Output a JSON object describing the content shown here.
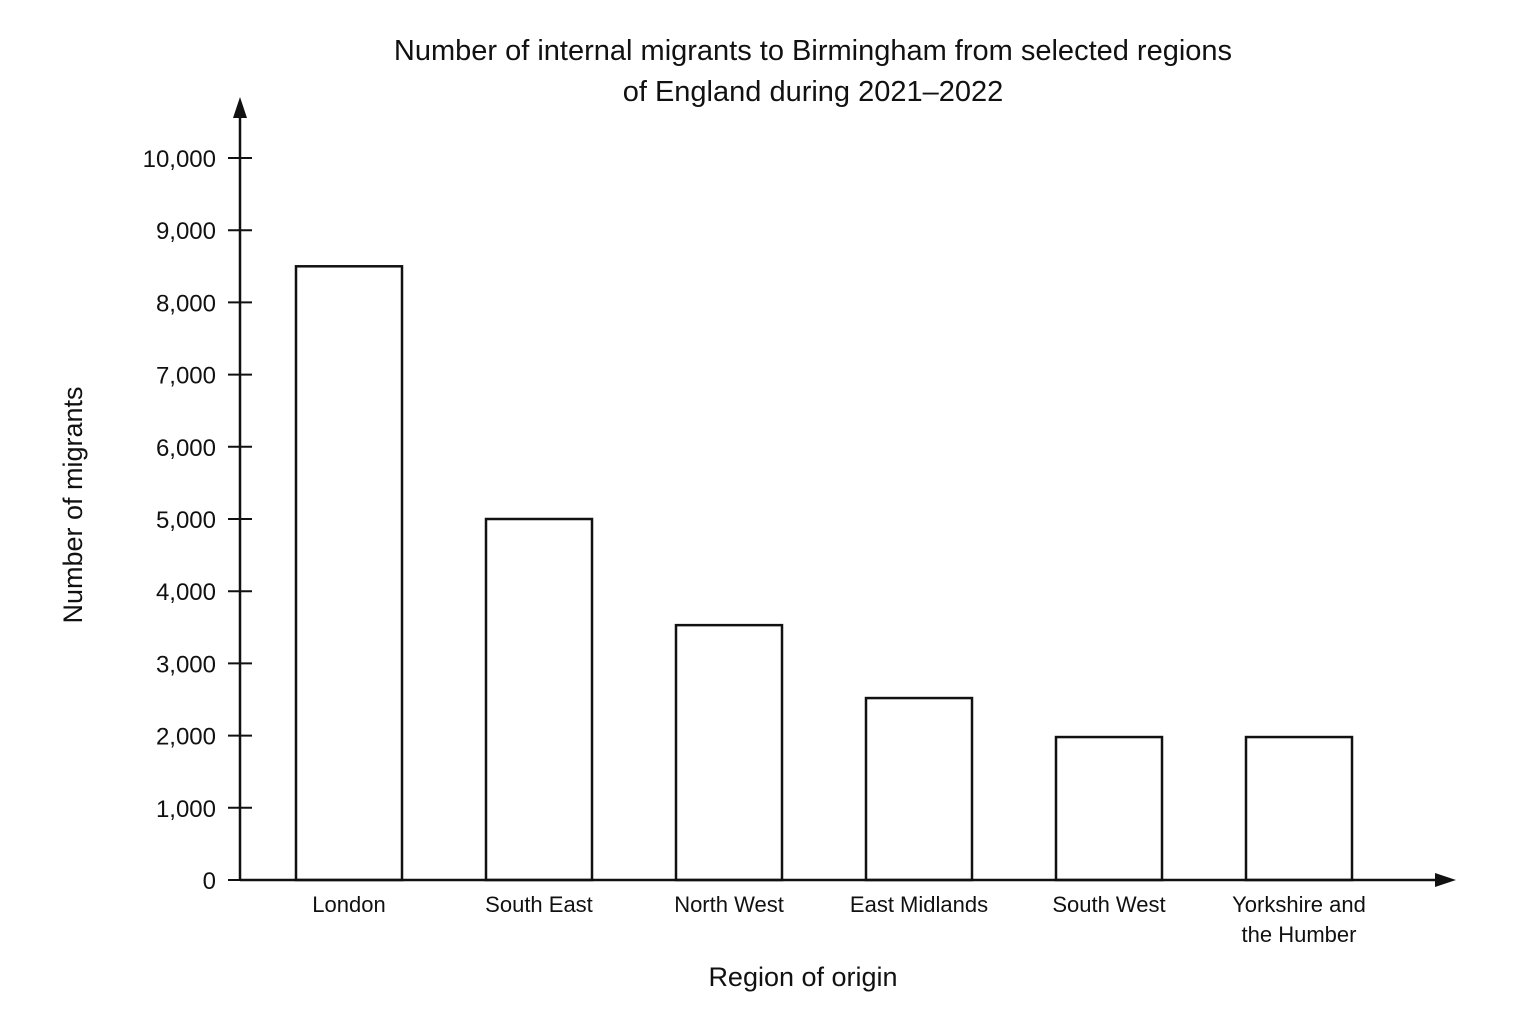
{
  "chart_data": {
    "type": "bar",
    "title_lines": [
      "Number of internal migrants to Birmingham from selected regions",
      "of England during 2021–2022"
    ],
    "xlabel": "Region of origin",
    "ylabel": "Number of migrants",
    "ylim": [
      0,
      10000
    ],
    "yticks": [
      0,
      1000,
      2000,
      3000,
      4000,
      5000,
      6000,
      7000,
      8000,
      9000,
      10000
    ],
    "ytick_labels": [
      "0",
      "1,000",
      "2,000",
      "3,000",
      "4,000",
      "5,000",
      "6,000",
      "7,000",
      "8,000",
      "9,000",
      "10,000"
    ],
    "categories": [
      [
        "London"
      ],
      [
        "South East"
      ],
      [
        "North West"
      ],
      [
        "East Midlands"
      ],
      [
        "South West"
      ],
      [
        "Yorkshire and",
        "the Humber"
      ]
    ],
    "values": [
      8500,
      5000,
      3530,
      2520,
      1980,
      1980
    ],
    "grid": false,
    "legend": "none",
    "bar_fill": "#ffffff",
    "bar_stroke": "#111111",
    "axis_color": "#111111"
  }
}
